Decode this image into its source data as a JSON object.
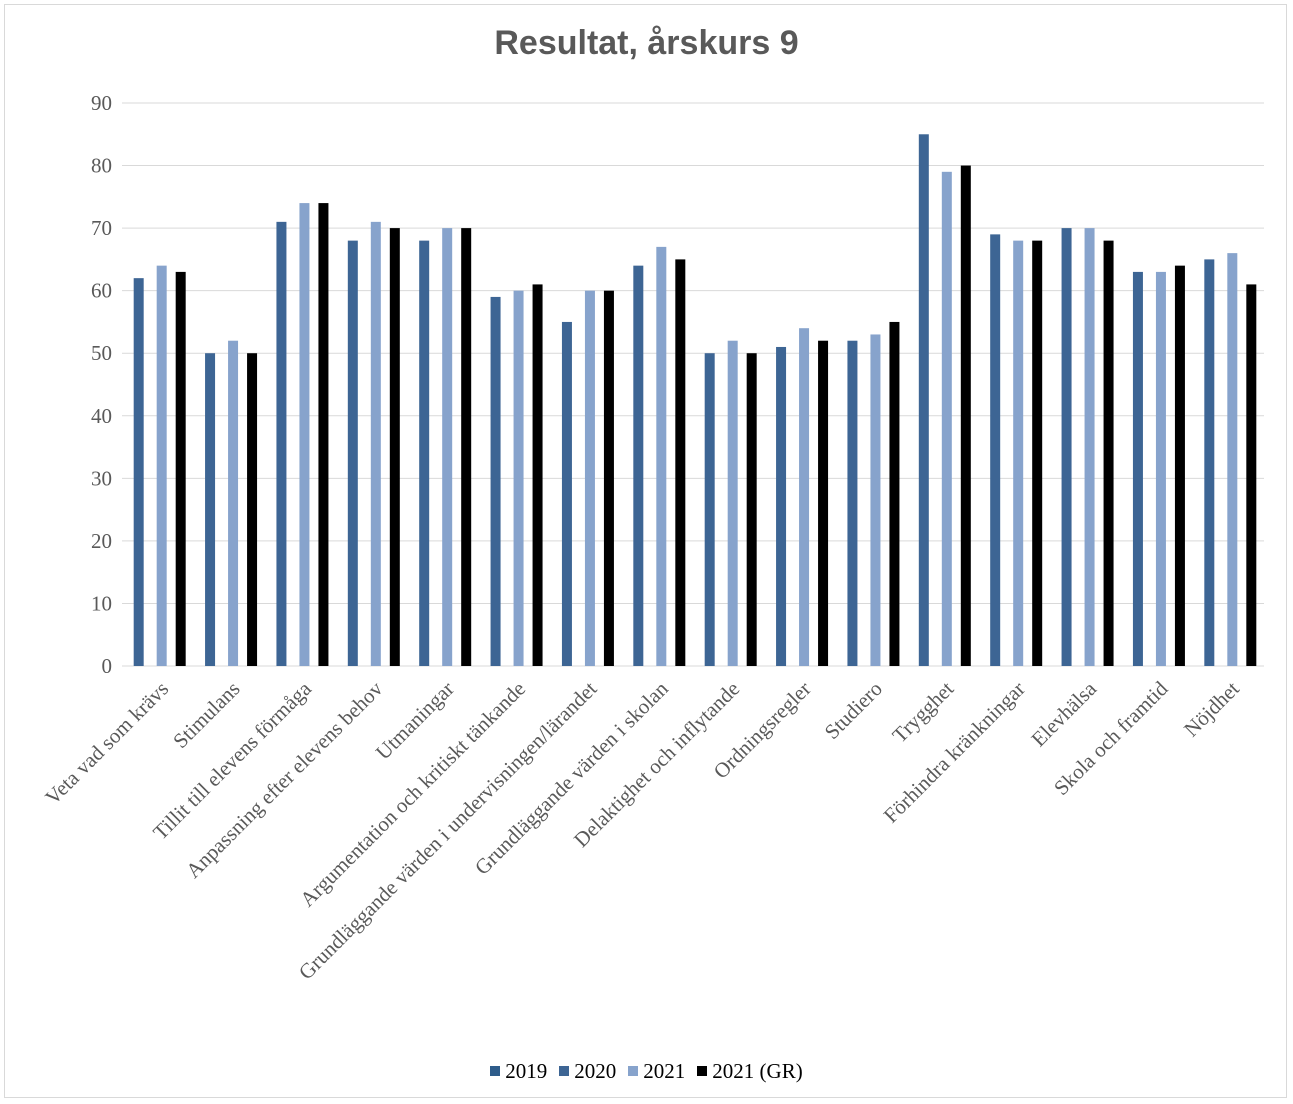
{
  "chart_data": {
    "type": "bar",
    "title": "Resultat, årskurs 9",
    "xlabel": "",
    "ylabel": "",
    "ylim": [
      0,
      90
    ],
    "yticks": [
      0,
      10,
      20,
      30,
      40,
      50,
      60,
      70,
      80,
      90
    ],
    "grid": true,
    "legend_position": "bottom",
    "categories": [
      "Veta vad som krävs",
      "Stimulans",
      "Tillit till elevens förmåga",
      "Anpassning efter elevens behov",
      "Utmaningar",
      "Argumentation och kritiskt tänkande",
      "Grundläggande värden i undervisningen/lärandet",
      "Grundläggande värden i skolan",
      "Delaktighet och inflytande",
      "Ordningsregler",
      "Studiero",
      "Trygghet",
      "Förhindra kränkningar",
      "Elevhälsa",
      "Skola och framtid",
      "Nöjdhet"
    ],
    "series": [
      {
        "name": "2019",
        "color": "#2e5c8a",
        "values": [
          null,
          null,
          null,
          null,
          null,
          null,
          null,
          null,
          null,
          null,
          null,
          null,
          null,
          null,
          null,
          null
        ]
      },
      {
        "name": "2020",
        "color": "#3d6594",
        "values": [
          62,
          50,
          71,
          68,
          68,
          59,
          55,
          64,
          50,
          51,
          52,
          85,
          69,
          70,
          63,
          65
        ]
      },
      {
        "name": "2021",
        "color": "#87a3cc",
        "values": [
          64,
          52,
          74,
          71,
          70,
          60,
          60,
          67,
          52,
          54,
          53,
          79,
          68,
          70,
          63,
          66
        ]
      },
      {
        "name": "2021 (GR)",
        "color": "#000000",
        "values": [
          63,
          50,
          74,
          70,
          70,
          61,
          60,
          65,
          50,
          52,
          55,
          80,
          68,
          68,
          64,
          61
        ]
      }
    ]
  }
}
